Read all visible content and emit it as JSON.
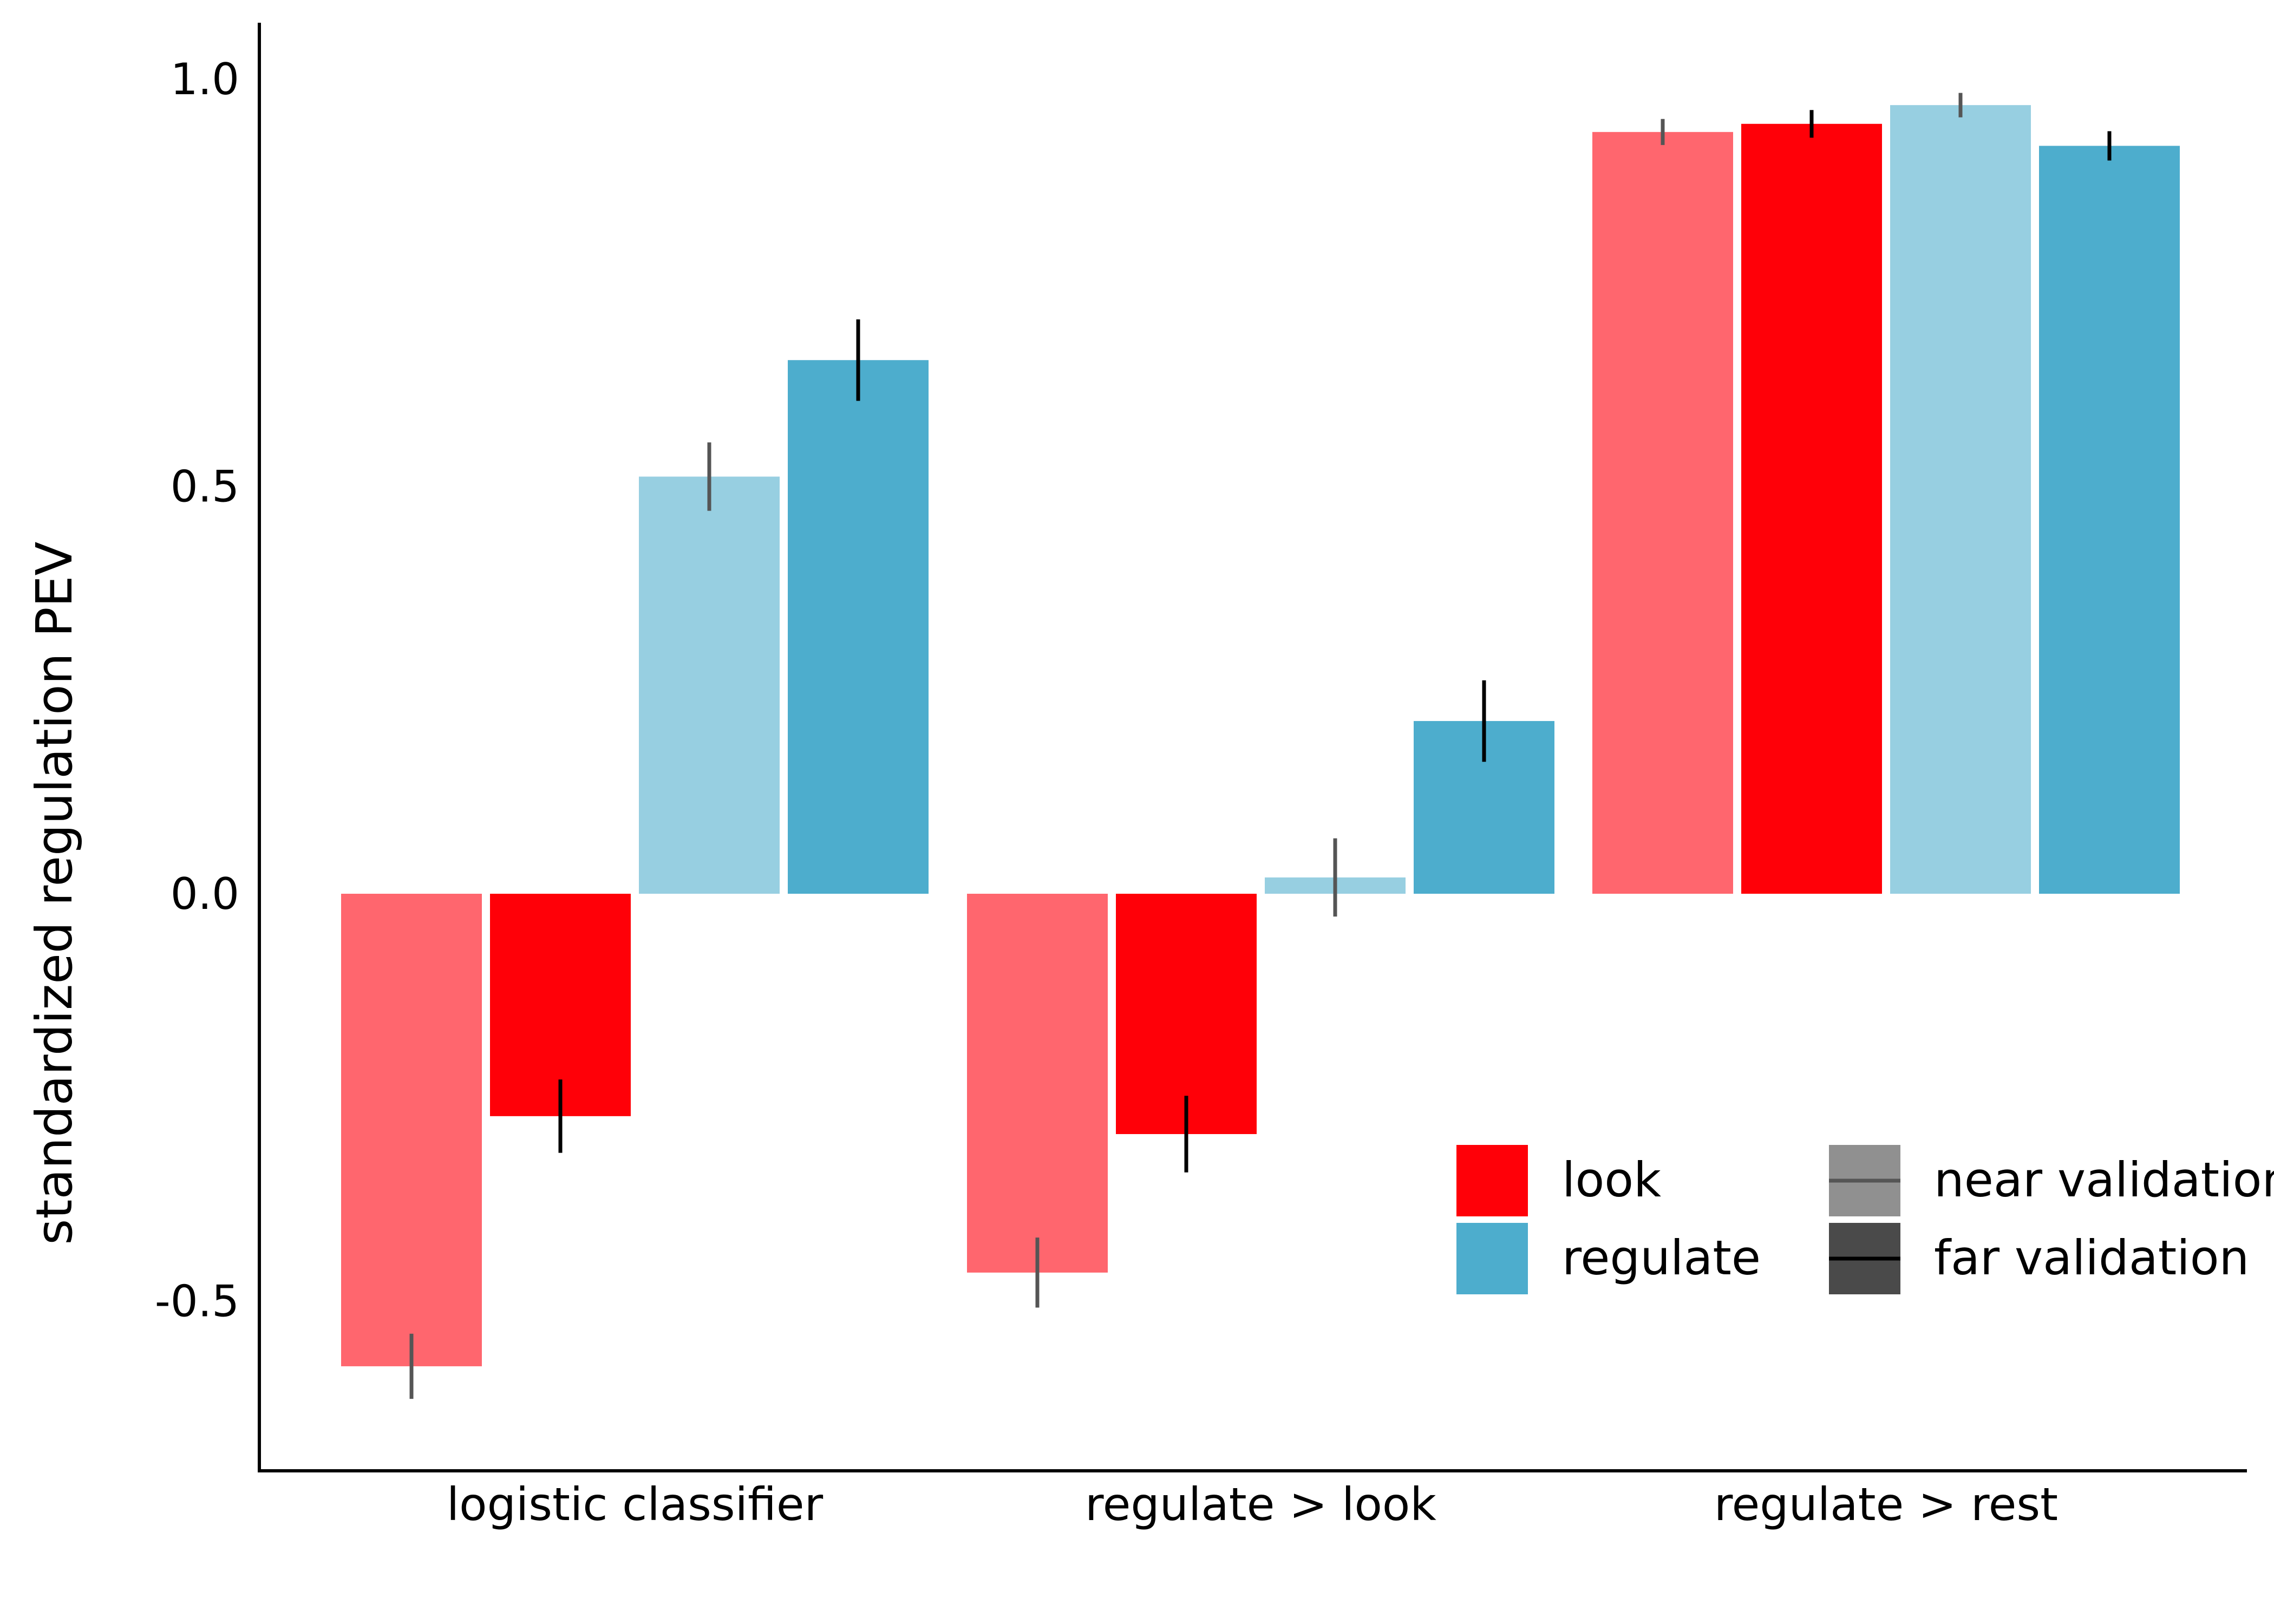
{
  "chart_data": {
    "type": "bar",
    "title": "",
    "xlabel": "",
    "ylabel": "standardized regulation PEV",
    "ylim": [
      -0.7,
      1.07
    ],
    "yticks": [
      1.0,
      0.5,
      0.0,
      -0.5
    ],
    "ytick_labels": [
      "1.0",
      "0.5",
      "0.0",
      "-0.5"
    ],
    "grid": false,
    "categories": [
      "logistic classifier",
      "regulate > look",
      "regulate > rest"
    ],
    "series": [
      {
        "condition": "look",
        "validation": "near validation",
        "color": "#ff666e",
        "values": [
          -0.58,
          -0.465,
          0.935
        ],
        "err": [
          0.04,
          0.043,
          0.016
        ]
      },
      {
        "condition": "look",
        "validation": "far validation",
        "color": "#ff0008",
        "values": [
          -0.273,
          -0.295,
          0.945
        ],
        "err": [
          0.045,
          0.047,
          0.017
        ]
      },
      {
        "condition": "regulate",
        "validation": "near validation",
        "color": "#97cfe1",
        "values": [
          0.512,
          0.02,
          0.968
        ],
        "err": [
          0.042,
          0.048,
          0.015
        ]
      },
      {
        "condition": "regulate",
        "validation": "far validation",
        "color": "#4dadcd",
        "values": [
          0.655,
          0.212,
          0.918
        ],
        "err": [
          0.05,
          0.05,
          0.018
        ]
      }
    ],
    "error_colors": {
      "near validation": "#555555",
      "far validation": "#000000"
    },
    "legend": {
      "placement": "bottom-right",
      "condition": [
        {
          "label": "look",
          "color": "#ff0008"
        },
        {
          "label": "regulate",
          "color": "#4dadcd"
        }
      ],
      "validation": [
        {
          "label": "near validation",
          "color": "#909090",
          "line": "#555555"
        },
        {
          "label": "far validation",
          "color": "#4a4a4a",
          "line": "#000000"
        }
      ]
    }
  }
}
